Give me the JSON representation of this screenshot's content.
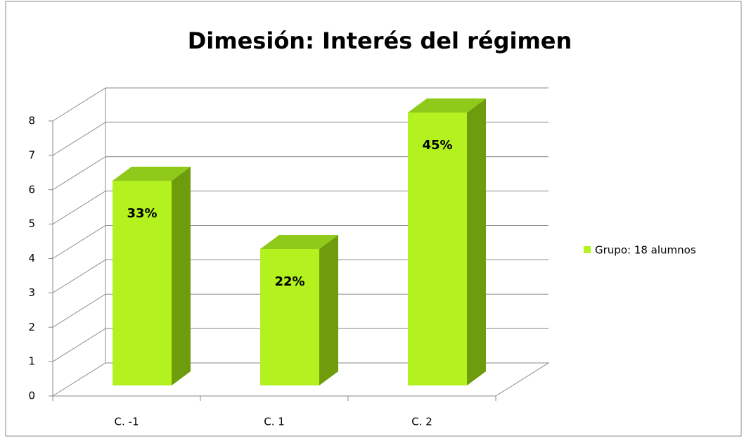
{
  "chart_data": {
    "type": "bar3d",
    "title": "Dimesión: Interés del régimen",
    "categories": [
      "C. -1",
      "C. 1",
      "C. 2"
    ],
    "series": [
      {
        "name": "Grupo: 18 alumnos",
        "color": "#b3f21f",
        "values": [
          6,
          4,
          8
        ]
      }
    ],
    "data_labels": [
      "33%",
      "22%",
      "45%"
    ],
    "ylim": [
      0,
      8
    ],
    "yticks": [
      0,
      1,
      2,
      3,
      4,
      5,
      6,
      7,
      8
    ],
    "grid": true,
    "legend": "right"
  }
}
